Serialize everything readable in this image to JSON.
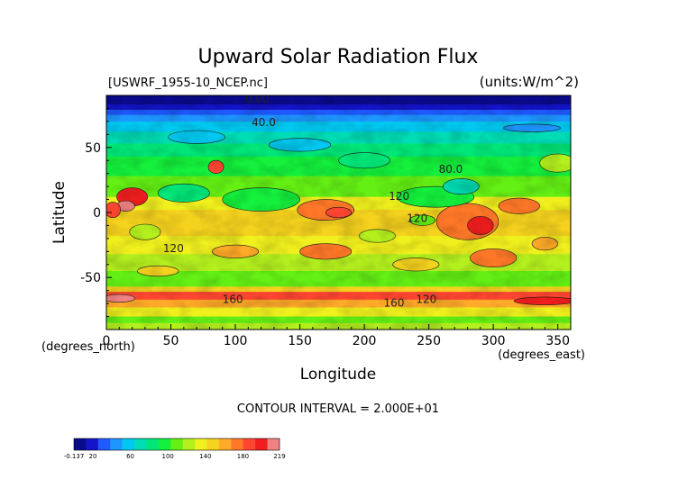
{
  "chart_data": {
    "type": "heatmap",
    "title": "Upward Solar Radiation Flux",
    "file_label": "[USWRF_1955-10_NCEP.nc]",
    "units_label": "(units:W/m^2)",
    "xlabel": "Longitude",
    "ylabel": "Latitude",
    "x_units_label": "(degrees_east)",
    "y_units_label": "(degrees_north)",
    "xlim": [
      0,
      360
    ],
    "ylim": [
      -90,
      90
    ],
    "x_ticks": [
      "0",
      "50",
      "100",
      "150",
      "200",
      "250",
      "300",
      "350"
    ],
    "y_ticks": [
      "50",
      "0",
      "-50"
    ],
    "contour_interval_label": "CONTOUR INTERVAL = 2.000E+01",
    "contour_labels": [
      {
        "text": "0.00",
        "lon": 117,
        "lat": 87
      },
      {
        "text": "40.0",
        "lon": 122,
        "lat": 69
      },
      {
        "text": "80.0",
        "lon": 267,
        "lat": 33
      },
      {
        "text": "120",
        "lon": 227,
        "lat": 12
      },
      {
        "text": "120",
        "lon": 241,
        "lat": -5
      },
      {
        "text": "120",
        "lon": 52,
        "lat": -28
      },
      {
        "text": "160",
        "lon": 98,
        "lat": -67
      },
      {
        "text": "160",
        "lon": 223,
        "lat": -70
      },
      {
        "text": "120",
        "lon": 248,
        "lat": -67
      }
    ],
    "grid": false,
    "colorbar": {
      "placement": "bottom-left",
      "tick_labels": [
        "-0.137",
        "20",
        "60",
        "100",
        "140",
        "180",
        "219"
      ],
      "min": -0.137,
      "max": 219
    },
    "colors": [
      "#0a0a8c",
      "#1414c8",
      "#1e5aff",
      "#1e96ff",
      "#00c8f0",
      "#00dcb4",
      "#00e678",
      "#14f03c",
      "#64f014",
      "#b4f01e",
      "#f0f01e",
      "#f5d21e",
      "#ffaa28",
      "#ff7828",
      "#ff4632",
      "#f01e1e",
      "#f08282"
    ]
  }
}
